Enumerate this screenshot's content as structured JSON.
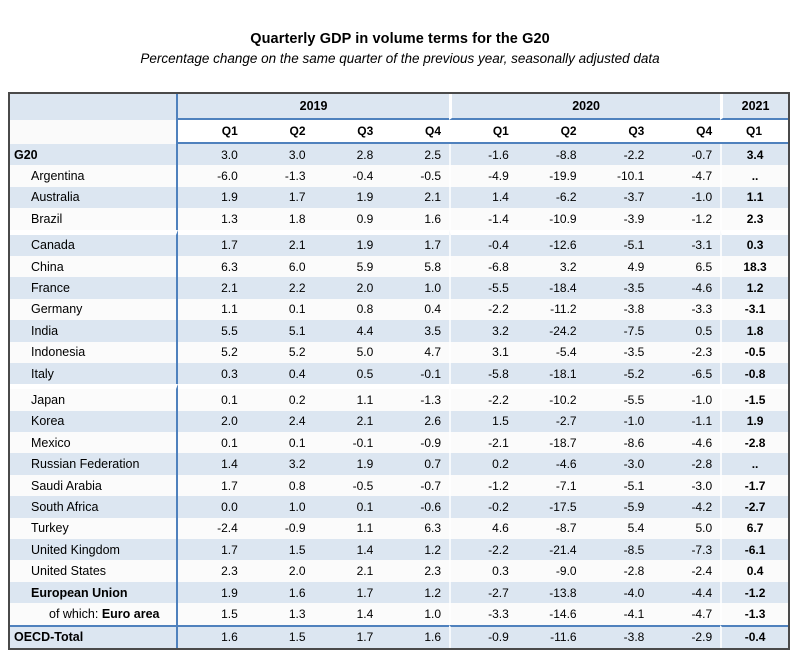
{
  "title": "Quarterly GDP in volume terms for the G20",
  "subtitle": "Percentage change on the same quarter of the previous year, seasonally adjusted data",
  "colors": {
    "stripe_blue": "#dce6f1",
    "rule_blue": "#4f81bd",
    "outer_border": "#4a4a4a"
  },
  "chart_data": {
    "type": "table",
    "title": "Quarterly GDP in volume terms for the G20",
    "subtitle": "Percentage change on the same quarter of the previous year, seasonally adjusted data",
    "year_groups": [
      {
        "label": "2019",
        "span": 4
      },
      {
        "label": "2020",
        "span": 4
      },
      {
        "label": "2021",
        "span": 1
      }
    ],
    "quarter_headers": [
      "Q1",
      "Q2",
      "Q3",
      "Q4",
      "Q1",
      "Q2",
      "Q3",
      "Q4",
      "Q1"
    ],
    "missing_value_symbol": "..",
    "rows": [
      {
        "label": "G20",
        "indent": 0,
        "bold": true,
        "gap": false,
        "rule": false,
        "values": [
          "3.0",
          "3.0",
          "2.8",
          "2.5",
          "-1.6",
          "-8.8",
          "-2.2",
          "-0.7",
          "3.4"
        ]
      },
      {
        "label": "Argentina",
        "indent": 1,
        "bold": false,
        "gap": false,
        "rule": false,
        "values": [
          "-6.0",
          "-1.3",
          "-0.4",
          "-0.5",
          "-4.9",
          "-19.9",
          "-10.1",
          "-4.7",
          ".."
        ]
      },
      {
        "label": "Australia",
        "indent": 1,
        "bold": false,
        "gap": false,
        "rule": false,
        "values": [
          "1.9",
          "1.7",
          "1.9",
          "2.1",
          "1.4",
          "-6.2",
          "-3.7",
          "-1.0",
          "1.1"
        ]
      },
      {
        "label": "Brazil",
        "indent": 1,
        "bold": false,
        "gap": false,
        "rule": false,
        "values": [
          "1.3",
          "1.8",
          "0.9",
          "1.6",
          "-1.4",
          "-10.9",
          "-3.9",
          "-1.2",
          "2.3"
        ]
      },
      {
        "label": "Canada",
        "indent": 1,
        "bold": false,
        "gap": true,
        "rule": false,
        "values": [
          "1.7",
          "2.1",
          "1.9",
          "1.7",
          "-0.4",
          "-12.6",
          "-5.1",
          "-3.1",
          "0.3"
        ]
      },
      {
        "label": "China",
        "indent": 1,
        "bold": false,
        "gap": false,
        "rule": false,
        "values": [
          "6.3",
          "6.0",
          "5.9",
          "5.8",
          "-6.8",
          "3.2",
          "4.9",
          "6.5",
          "18.3"
        ]
      },
      {
        "label": "France",
        "indent": 1,
        "bold": false,
        "gap": false,
        "rule": false,
        "values": [
          "2.1",
          "2.2",
          "2.0",
          "1.0",
          "-5.5",
          "-18.4",
          "-3.5",
          "-4.6",
          "1.2"
        ]
      },
      {
        "label": "Germany",
        "indent": 1,
        "bold": false,
        "gap": false,
        "rule": false,
        "values": [
          "1.1",
          "0.1",
          "0.8",
          "0.4",
          "-2.2",
          "-11.2",
          "-3.8",
          "-3.3",
          "-3.1"
        ]
      },
      {
        "label": "India",
        "indent": 1,
        "bold": false,
        "gap": false,
        "rule": false,
        "values": [
          "5.5",
          "5.1",
          "4.4",
          "3.5",
          "3.2",
          "-24.2",
          "-7.5",
          "0.5",
          "1.8"
        ]
      },
      {
        "label": "Indonesia",
        "indent": 1,
        "bold": false,
        "gap": false,
        "rule": false,
        "values": [
          "5.2",
          "5.2",
          "5.0",
          "4.7",
          "3.1",
          "-5.4",
          "-3.5",
          "-2.3",
          "-0.5"
        ]
      },
      {
        "label": "Italy",
        "indent": 1,
        "bold": false,
        "gap": false,
        "rule": false,
        "values": [
          "0.3",
          "0.4",
          "0.5",
          "-0.1",
          "-5.8",
          "-18.1",
          "-5.2",
          "-6.5",
          "-0.8"
        ]
      },
      {
        "label": "Japan",
        "indent": 1,
        "bold": false,
        "gap": true,
        "rule": false,
        "values": [
          "0.1",
          "0.2",
          "1.1",
          "-1.3",
          "-2.2",
          "-10.2",
          "-5.5",
          "-1.0",
          "-1.5"
        ]
      },
      {
        "label": "Korea",
        "indent": 1,
        "bold": false,
        "gap": false,
        "rule": false,
        "values": [
          "2.0",
          "2.4",
          "2.1",
          "2.6",
          "1.5",
          "-2.7",
          "-1.0",
          "-1.1",
          "1.9"
        ]
      },
      {
        "label": "Mexico",
        "indent": 1,
        "bold": false,
        "gap": false,
        "rule": false,
        "values": [
          "0.1",
          "0.1",
          "-0.1",
          "-0.9",
          "-2.1",
          "-18.7",
          "-8.6",
          "-4.6",
          "-2.8"
        ]
      },
      {
        "label": "Russian Federation",
        "indent": 1,
        "bold": false,
        "gap": false,
        "rule": false,
        "values": [
          "1.4",
          "3.2",
          "1.9",
          "0.7",
          "0.2",
          "-4.6",
          "-3.0",
          "-2.8",
          ".."
        ]
      },
      {
        "label": "Saudi Arabia",
        "indent": 1,
        "bold": false,
        "gap": false,
        "rule": false,
        "values": [
          "1.7",
          "0.8",
          "-0.5",
          "-0.7",
          "-1.2",
          "-7.1",
          "-5.1",
          "-3.0",
          "-1.7"
        ]
      },
      {
        "label": "South Africa",
        "indent": 1,
        "bold": false,
        "gap": false,
        "rule": false,
        "values": [
          "0.0",
          "1.0",
          "0.1",
          "-0.6",
          "-0.2",
          "-17.5",
          "-5.9",
          "-4.2",
          "-2.7"
        ]
      },
      {
        "label": "Turkey",
        "indent": 1,
        "bold": false,
        "gap": false,
        "rule": false,
        "values": [
          "-2.4",
          "-0.9",
          "1.1",
          "6.3",
          "4.6",
          "-8.7",
          "5.4",
          "5.0",
          "6.7"
        ]
      },
      {
        "label": "United Kingdom",
        "indent": 1,
        "bold": false,
        "gap": false,
        "rule": false,
        "values": [
          "1.7",
          "1.5",
          "1.4",
          "1.2",
          "-2.2",
          "-21.4",
          "-8.5",
          "-7.3",
          "-6.1"
        ]
      },
      {
        "label": "United States",
        "indent": 1,
        "bold": false,
        "gap": false,
        "rule": false,
        "values": [
          "2.3",
          "2.0",
          "2.1",
          "2.3",
          "0.3",
          "-9.0",
          "-2.8",
          "-2.4",
          "0.4"
        ]
      },
      {
        "label": "European Union",
        "indent": 1,
        "bold": true,
        "gap": false,
        "rule": false,
        "values": [
          "1.9",
          "1.6",
          "1.7",
          "1.2",
          "-2.7",
          "-13.8",
          "-4.0",
          "-4.4",
          "-1.2"
        ]
      },
      {
        "label": "Euro area",
        "prefix": "of which: ",
        "indent": 2,
        "bold": true,
        "gap": false,
        "rule": false,
        "values": [
          "1.5",
          "1.3",
          "1.4",
          "1.0",
          "-3.3",
          "-14.6",
          "-4.1",
          "-4.7",
          "-1.3"
        ]
      },
      {
        "label": "OECD-Total",
        "indent": 0,
        "bold": true,
        "gap": false,
        "rule": true,
        "values": [
          "1.6",
          "1.5",
          "1.7",
          "1.6",
          "-0.9",
          "-11.6",
          "-3.8",
          "-2.9",
          "-0.4"
        ]
      }
    ]
  }
}
